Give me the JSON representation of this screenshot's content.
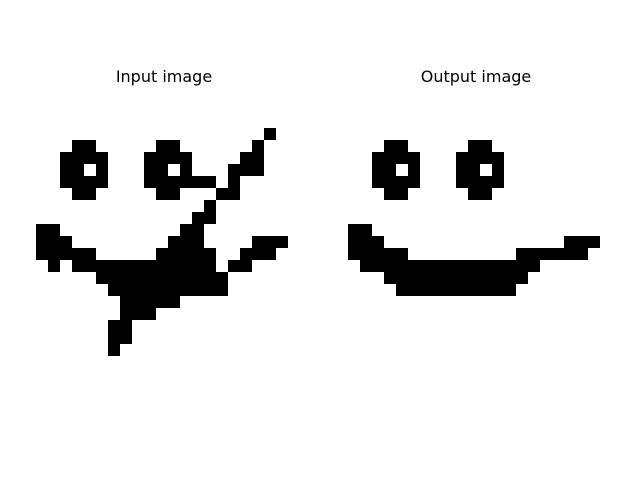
{
  "panels": {
    "input": {
      "title": "Input image",
      "grid_size": [
        22,
        22
      ],
      "cell_color": "#000000",
      "background_color": "#ffffff",
      "rows": [
        "......................",
        "...................#..",
        "...##.....##......#...",
        "..####...####....##...",
        "..##.#...##.#...###...",
        "..####...######.#.....",
        "...##.....##...##.....",
        "..............#.......",
        ".............##.......",
        "##..........##........",
        "###........###....###.",
        "#####.....#####..###..",
        ".#.############.##....",
        ".....###########......",
        "......##########......",
        ".......#####..........",
        ".......###............",
        "......##..............",
        "......##..............",
        "......#...............",
        "......................",
        "......................"
      ]
    },
    "output": {
      "title": "Output image",
      "grid_size": [
        22,
        22
      ],
      "cell_color": "#000000",
      "background_color": "#ffffff",
      "rows": [
        "......................",
        "......................",
        "...##.....##..........",
        "..####...####.........",
        "..##.#...##.#.........",
        "..####...####.........",
        "...##.....##..........",
        "......................",
        "......................",
        "##....................",
        "###...............###.",
        "#####.........######..",
        ".###############......",
        "...############.......",
        "....##########........",
        "......................",
        "......................",
        "......................",
        "......................",
        "......................",
        "......................",
        "......................"
      ]
    }
  }
}
